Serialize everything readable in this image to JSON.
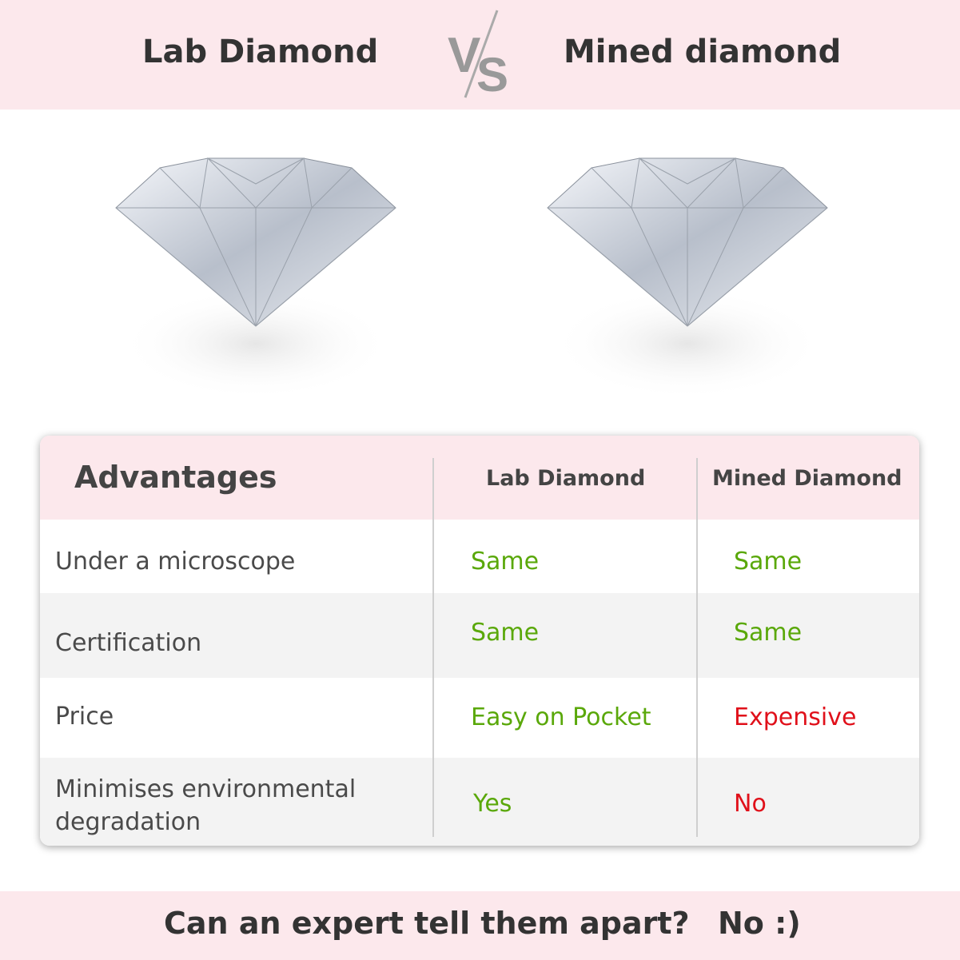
{
  "header": {
    "left_title": "Lab Diamond",
    "vs_logo": "VS",
    "right_title": "Mined diamond"
  },
  "images": {
    "left": "diamond-image",
    "right": "diamond-image"
  },
  "table": {
    "columns": [
      "Advantages",
      "Lab Diamond",
      "Mined Diamond"
    ],
    "rows": [
      {
        "label": "Under a microscope",
        "lab": "Same",
        "mined": "Same"
      },
      {
        "label": "Certification",
        "lab": "Same",
        "mined": "Same"
      },
      {
        "label": "Price",
        "lab": "Easy on Pocket",
        "mined": "Expensive"
      },
      {
        "label": "Minimises environmental degradation",
        "lab": "Yes",
        "mined": "No"
      }
    ],
    "colors": {
      "positive": "#5aa80a",
      "negative": "#e0101a",
      "header_bg": "#fce8ec",
      "alt_row_bg": "#f3f3f3"
    }
  },
  "footer": {
    "question": "Can an expert tell them apart?",
    "answer": "No :)"
  }
}
